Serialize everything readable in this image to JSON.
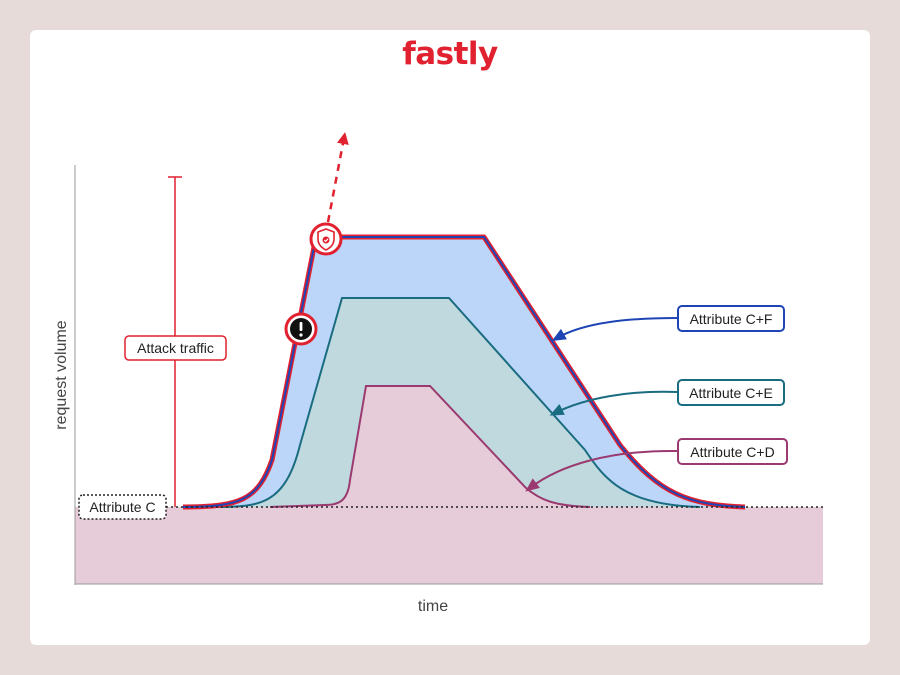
{
  "brand": {
    "name": "fastly",
    "color": "#e1212f"
  },
  "axes": {
    "x_label": "time",
    "y_label": "request volume"
  },
  "labels": {
    "attack_traffic": "Attack traffic",
    "baseline": "Attribute C",
    "series_cf": "Attribute C+F",
    "series_ce": "Attribute C+E",
    "series_cd": "Attribute C+D"
  },
  "icons": {
    "warning": "exclamation-circle-icon",
    "shield": "shield-check-icon",
    "escalation": "dashed-arrow-up-icon"
  },
  "colors": {
    "background": "#e6dbd8",
    "attack_red": "#e1212f",
    "series_cf": "#1f45b5",
    "series_cf_fill": "#bcd6fa",
    "series_ce": "#1a6c80",
    "series_ce_fill": "#bfd9de",
    "series_cd": "#9a3a70",
    "series_cd_fill": "#e6ccd9"
  }
}
